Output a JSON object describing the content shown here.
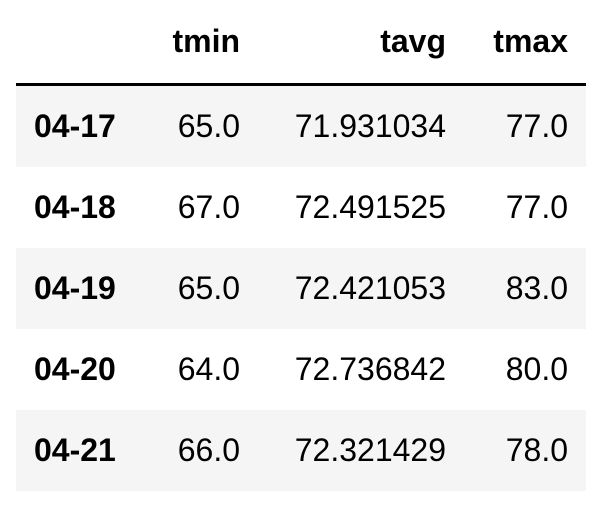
{
  "table": {
    "columns": [
      "tmin",
      "tavg",
      "tmax"
    ],
    "rows": [
      {
        "index": "04-17",
        "tmin": "65.0",
        "tavg": "71.931034",
        "tmax": "77.0"
      },
      {
        "index": "04-18",
        "tmin": "67.0",
        "tavg": "72.491525",
        "tmax": "77.0"
      },
      {
        "index": "04-19",
        "tmin": "65.0",
        "tavg": "72.421053",
        "tmax": "83.0"
      },
      {
        "index": "04-20",
        "tmin": "64.0",
        "tavg": "72.736842",
        "tmax": "80.0"
      },
      {
        "index": "04-21",
        "tmin": "66.0",
        "tavg": "72.321429",
        "tmax": "78.0"
      }
    ]
  }
}
